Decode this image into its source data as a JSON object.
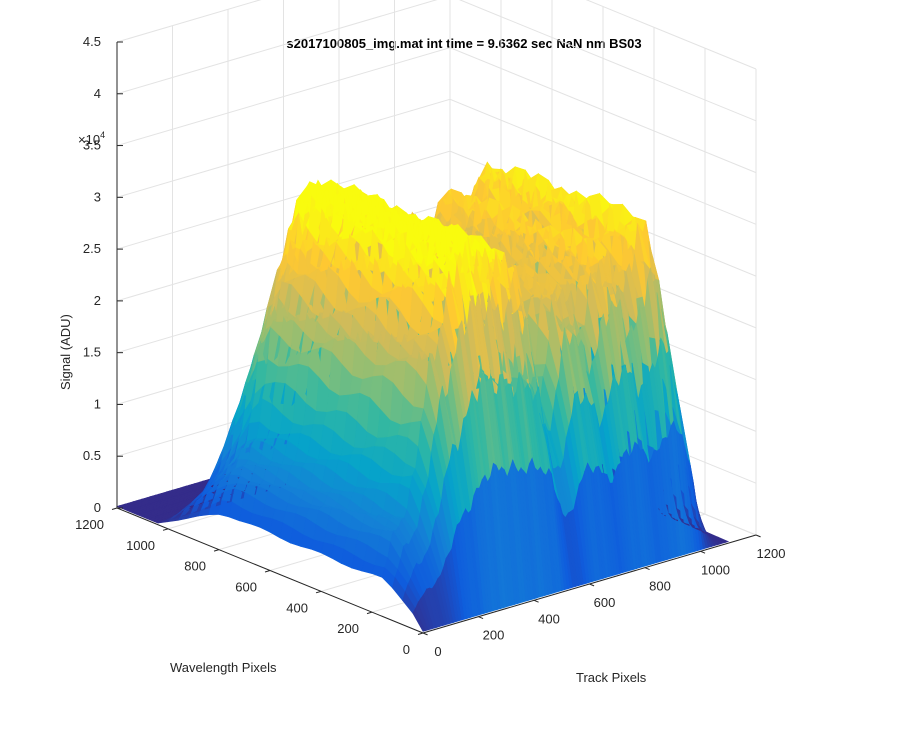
{
  "chart_data": {
    "type": "surface",
    "title": "s2017100805_img.mat int time = 9.6362 sec  NaN nm BS03",
    "xlabel": "Track Pixels",
    "ylabel": "Wavelength Pixels",
    "zlabel": "Signal (ADU)",
    "z_exponent_label": "×10",
    "z_exponent_power": "4",
    "xlim": [
      0,
      1200
    ],
    "ylim": [
      0,
      1200
    ],
    "zlim": [
      0,
      45000
    ],
    "x_ticks": [
      "0",
      "200",
      "400",
      "600",
      "800",
      "1000",
      "1200"
    ],
    "y_ticks": [
      "0",
      "200",
      "400",
      "600",
      "800",
      "1000",
      "1200"
    ],
    "z_ticks": [
      "0",
      "0.5",
      "1",
      "1.5",
      "2",
      "2.5",
      "3",
      "3.5",
      "4",
      "4.5"
    ],
    "grid": true,
    "colormap": "parula",
    "colors": [
      "#352a87",
      "#0f5cdd",
      "#1481d6",
      "#06a4ca",
      "#2eb7a4",
      "#87bf77",
      "#d1bb59",
      "#fec832",
      "#f9fb0e"
    ],
    "tracks": [
      {
        "x": 70,
        "peak": 8000
      },
      {
        "x": 200,
        "peak": 23000
      },
      {
        "x": 330,
        "peak": 31000
      },
      {
        "x": 470,
        "peak": 28000
      },
      {
        "x": 640,
        "peak": 26000
      },
      {
        "x": 790,
        "peak": 27500
      },
      {
        "x": 940,
        "peak": 29500
      }
    ]
  }
}
